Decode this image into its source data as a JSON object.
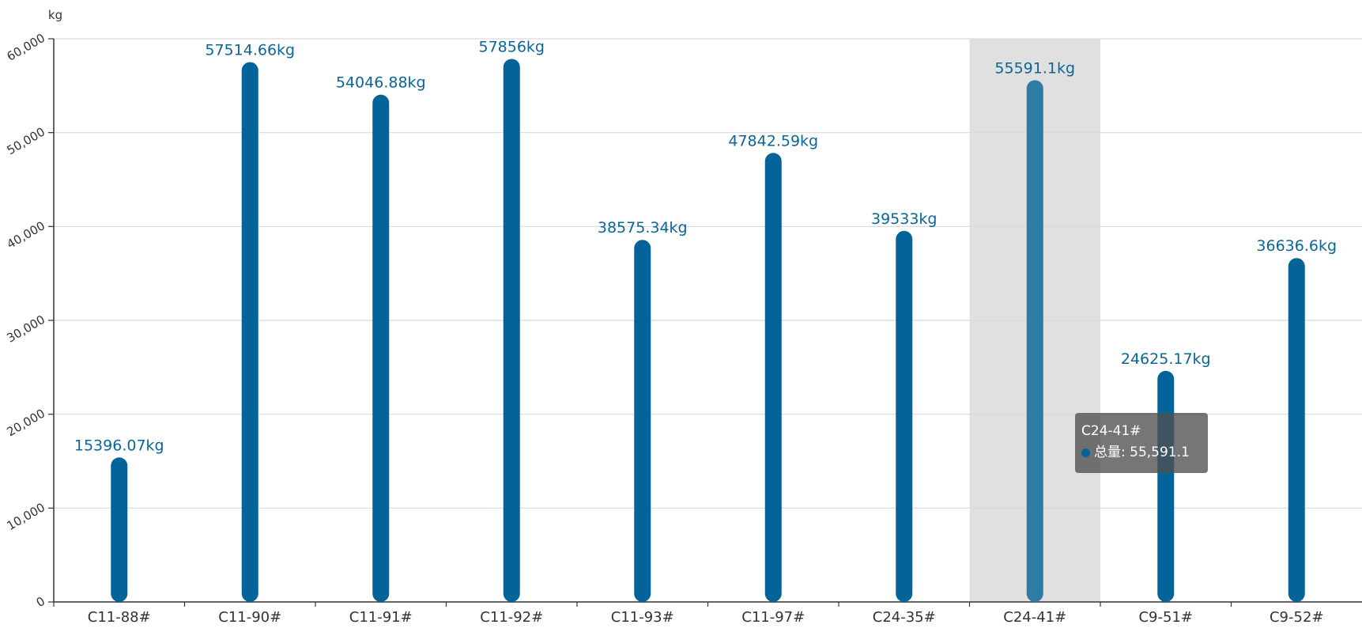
{
  "chart_data": {
    "type": "bar",
    "ylabel": "kg",
    "ylim": [
      0,
      60000
    ],
    "yticks": [
      "0",
      "10,000",
      "20,000",
      "30,000",
      "40,000",
      "50,000",
      "60,000"
    ],
    "categories": [
      "C11-88#",
      "C11-90#",
      "C11-91#",
      "C11-92#",
      "C11-93#",
      "C11-97#",
      "C24-35#",
      "C24-41#",
      "C9-51#",
      "C9-52#"
    ],
    "series": [
      {
        "name": "总量",
        "values": [
          15396.07,
          57514.66,
          54046.88,
          57856,
          38575.34,
          47842.59,
          39533,
          55591.1,
          24625.17,
          36636.6
        ],
        "data_labels": [
          "15396.07kg",
          "57514.66kg",
          "54046.88kg",
          "57856kg",
          "38575.34kg",
          "47842.59kg",
          "39533kg",
          "55591.1kg",
          "24625.17kg",
          "36636.6kg"
        ]
      }
    ],
    "highlighted_category": "C24-41#",
    "grid": true,
    "colors": {
      "bar": "#046399",
      "bar_highlight": "#2e7ba6",
      "highlight_band": "#e0e0e0",
      "label": "#0b6698",
      "grid": "#d9d9d9",
      "axis_text": "#333333"
    }
  },
  "tooltip": {
    "title": "C24-41#",
    "series_name": "总量",
    "value_text": "55,591.1",
    "dot_color": "#046399"
  }
}
